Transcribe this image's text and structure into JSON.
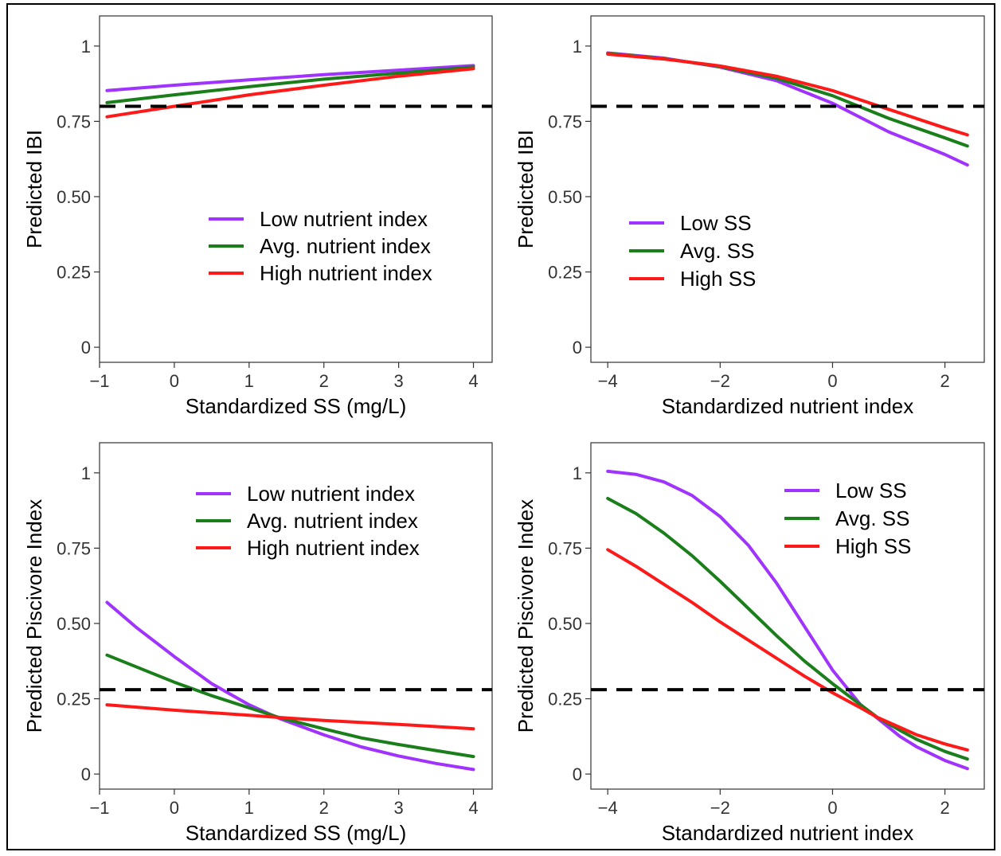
{
  "colors": {
    "low": "#a033ff",
    "avg": "#1a7f1a",
    "high": "#ff1a1a",
    "threshold": "#000000"
  },
  "chart_data": [
    {
      "type": "line",
      "ylabel": "Predicted IBI",
      "xlabel": "Standardized SS (mg/L)",
      "xlim": [
        -1.0,
        4.25
      ],
      "ylim": [
        -0.05,
        1.1
      ],
      "xticks": [
        -1,
        0,
        1,
        2,
        3,
        4
      ],
      "xtick_labels": [
        "−1",
        "0",
        "1",
        "2",
        "3",
        "4"
      ],
      "yticks": [
        0,
        0.25,
        0.5,
        0.75,
        1
      ],
      "ytick_labels": [
        "0",
        "0.25",
        "0.50",
        "0.75",
        "1"
      ],
      "threshold": 0.8,
      "legend_position": "center",
      "series": [
        {
          "name": "Low nutrient index",
          "color_key": "low",
          "x": [
            -0.9,
            0,
            1,
            2,
            3,
            4
          ],
          "y": [
            0.852,
            0.87,
            0.888,
            0.905,
            0.92,
            0.935
          ]
        },
        {
          "name": "Avg. nutrient index",
          "color_key": "avg",
          "x": [
            -0.9,
            0,
            1,
            2,
            3,
            4
          ],
          "y": [
            0.812,
            0.838,
            0.865,
            0.89,
            0.91,
            0.93
          ]
        },
        {
          "name": "High nutrient index",
          "color_key": "high",
          "x": [
            -0.9,
            0,
            1,
            2,
            3,
            4
          ],
          "y": [
            0.765,
            0.8,
            0.838,
            0.87,
            0.9,
            0.925
          ]
        }
      ]
    },
    {
      "type": "line",
      "ylabel": "Predicted IBI",
      "xlabel": "Standardized nutrient index",
      "xlim": [
        -4.3,
        2.7
      ],
      "ylim": [
        -0.05,
        1.1
      ],
      "xticks": [
        -4,
        -2,
        0,
        2
      ],
      "xtick_labels": [
        "−4",
        "−2",
        "0",
        "2"
      ],
      "yticks": [
        0,
        0.25,
        0.5,
        0.75,
        1
      ],
      "ytick_labels": [
        "0",
        "0.25",
        "0.50",
        "0.75",
        "1"
      ],
      "threshold": 0.8,
      "legend_position": "left",
      "series": [
        {
          "name": "Low SS",
          "color_key": "low",
          "x": [
            -4,
            -3,
            -2,
            -1,
            0,
            1,
            2,
            2.4
          ],
          "y": [
            0.977,
            0.96,
            0.93,
            0.885,
            0.81,
            0.715,
            0.64,
            0.605
          ]
        },
        {
          "name": "Avg. SS",
          "color_key": "avg",
          "x": [
            -4,
            -3,
            -2,
            -1,
            0,
            1,
            2,
            2.4
          ],
          "y": [
            0.975,
            0.958,
            0.932,
            0.893,
            0.835,
            0.76,
            0.695,
            0.668
          ]
        },
        {
          "name": "High SS",
          "color_key": "high",
          "x": [
            -4,
            -3,
            -2,
            -1,
            0,
            1,
            2,
            2.4
          ],
          "y": [
            0.973,
            0.957,
            0.934,
            0.9,
            0.852,
            0.79,
            0.728,
            0.705
          ]
        }
      ]
    },
    {
      "type": "line",
      "ylabel": "Predicted Piscivore Index",
      "xlabel": "Standardized SS (mg/L)",
      "xlim": [
        -1.0,
        4.25
      ],
      "ylim": [
        -0.05,
        1.1
      ],
      "xticks": [
        -1,
        0,
        1,
        2,
        3,
        4
      ],
      "xtick_labels": [
        "−1",
        "0",
        "1",
        "2",
        "3",
        "4"
      ],
      "yticks": [
        0,
        0.25,
        0.5,
        0.75,
        1
      ],
      "ytick_labels": [
        "0",
        "0.25",
        "0.50",
        "0.75",
        "1"
      ],
      "threshold": 0.28,
      "legend_position": "top",
      "series": [
        {
          "name": "Low nutrient index",
          "color_key": "low",
          "x": [
            -0.9,
            -0.5,
            0,
            0.5,
            1,
            1.4,
            2,
            2.5,
            3,
            3.5,
            4
          ],
          "y": [
            0.57,
            0.485,
            0.39,
            0.3,
            0.23,
            0.185,
            0.13,
            0.09,
            0.06,
            0.035,
            0.015
          ]
        },
        {
          "name": "Avg. nutrient index",
          "color_key": "avg",
          "x": [
            -0.9,
            -0.5,
            0,
            0.5,
            1,
            1.4,
            2,
            2.5,
            3,
            3.5,
            4
          ],
          "y": [
            0.395,
            0.355,
            0.305,
            0.26,
            0.22,
            0.188,
            0.15,
            0.12,
            0.098,
            0.078,
            0.058
          ]
        },
        {
          "name": "High nutrient index",
          "color_key": "high",
          "x": [
            -0.9,
            0,
            1,
            1.4,
            2,
            3,
            4
          ],
          "y": [
            0.23,
            0.212,
            0.195,
            0.188,
            0.178,
            0.165,
            0.15
          ]
        }
      ]
    },
    {
      "type": "line",
      "ylabel": "Predicted Piscivore Index",
      "xlabel": "Standardized nutrient index",
      "xlim": [
        -4.3,
        2.7
      ],
      "ylim": [
        -0.05,
        1.1
      ],
      "xticks": [
        -4,
        -2,
        0,
        2
      ],
      "xtick_labels": [
        "−4",
        "−2",
        "0",
        "2"
      ],
      "yticks": [
        0,
        0.25,
        0.5,
        0.75,
        1
      ],
      "ytick_labels": [
        "0",
        "0.25",
        "0.50",
        "0.75",
        "1"
      ],
      "threshold": 0.28,
      "legend_position": "top-right",
      "series": [
        {
          "name": "Low SS",
          "color_key": "low",
          "x": [
            -4,
            -3.5,
            -3,
            -2.5,
            -2,
            -1.5,
            -1,
            -0.5,
            0,
            0.5,
            0.8,
            1.2,
            1.5,
            2,
            2.4
          ],
          "y": [
            1.005,
            0.995,
            0.97,
            0.925,
            0.855,
            0.76,
            0.635,
            0.49,
            0.345,
            0.23,
            0.185,
            0.125,
            0.09,
            0.045,
            0.018
          ]
        },
        {
          "name": "Avg. SS",
          "color_key": "avg",
          "x": [
            -4,
            -3.5,
            -3,
            -2.5,
            -2,
            -1.5,
            -1,
            -0.5,
            0,
            0.5,
            0.8,
            1.2,
            1.5,
            2,
            2.4
          ],
          "y": [
            0.915,
            0.865,
            0.8,
            0.725,
            0.64,
            0.55,
            0.46,
            0.375,
            0.3,
            0.23,
            0.188,
            0.145,
            0.115,
            0.075,
            0.05
          ]
        },
        {
          "name": "High SS",
          "color_key": "high",
          "x": [
            -4,
            -3.5,
            -3,
            -2.5,
            -2,
            -1.5,
            -1,
            -0.5,
            0,
            0.5,
            0.8,
            1.2,
            1.5,
            2,
            2.4
          ],
          "y": [
            0.745,
            0.69,
            0.63,
            0.57,
            0.505,
            0.445,
            0.385,
            0.325,
            0.27,
            0.22,
            0.188,
            0.155,
            0.13,
            0.1,
            0.08
          ]
        }
      ]
    }
  ]
}
